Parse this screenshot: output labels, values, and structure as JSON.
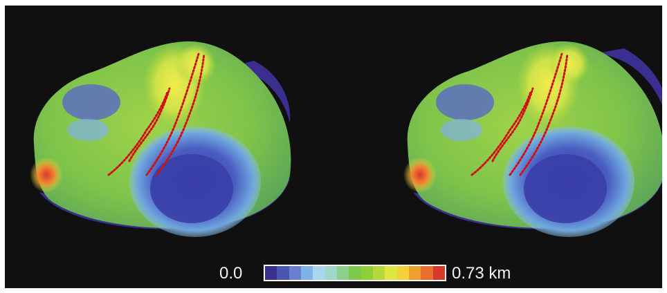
{
  "figure": {
    "views": [
      "left",
      "right"
    ],
    "track_color": "#d01010",
    "background": "#101010"
  },
  "colorbar": {
    "min_label": "0.0",
    "max_label": "0.73 km",
    "min_value": 0.0,
    "max_value": 0.73,
    "unit": "km",
    "colors": [
      "#3a2f8f",
      "#4a56b0",
      "#6a7fd0",
      "#7fb2e6",
      "#a8d6ee",
      "#9fd7c8",
      "#8ccf8a",
      "#7ec84a",
      "#8fcf3a",
      "#b5d83a",
      "#e0e640",
      "#f2d23a",
      "#ef9f30",
      "#e8702c",
      "#d8392c"
    ]
  }
}
